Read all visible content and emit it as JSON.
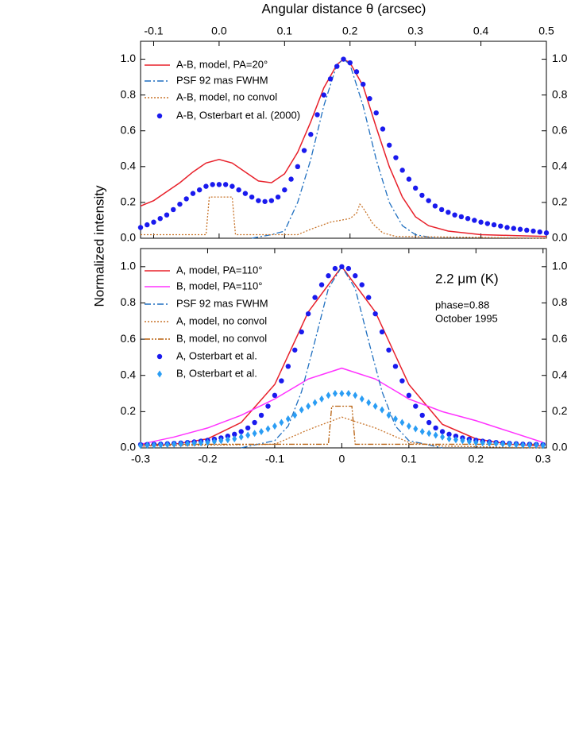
{
  "chart_data": [
    {
      "type": "line",
      "x_label": "Angular distance  θ (arcsec)",
      "y_label": "Normalized  intensity",
      "xlim": [
        -0.12,
        0.5
      ],
      "xticks": [
        -0.1,
        {
          "value": 0,
          "label": "0.0"
        },
        0.1,
        0.2,
        0.3,
        0.4,
        0.5
      ],
      "ylim": [
        0,
        1.1
      ],
      "yticks": [
        {
          "value": 0,
          "label": "0.0"
        },
        0.2,
        0.4,
        0.6,
        0.8,
        {
          "value": 1,
          "label": "1.0"
        }
      ],
      "series": [
        {
          "name": "A-B, model, PA=20°",
          "color": "#e8202a",
          "style": "solid",
          "x": [
            -0.12,
            -0.1,
            -0.08,
            -0.06,
            -0.04,
            -0.02,
            0,
            0.02,
            0.04,
            0.06,
            0.08,
            0.1,
            0.12,
            0.14,
            0.16,
            0.18,
            0.19,
            0.2,
            0.22,
            0.24,
            0.26,
            0.28,
            0.3,
            0.32,
            0.35,
            0.4,
            0.45,
            0.5
          ],
          "values": [
            0.18,
            0.21,
            0.26,
            0.31,
            0.37,
            0.42,
            0.44,
            0.42,
            0.37,
            0.32,
            0.31,
            0.36,
            0.48,
            0.65,
            0.84,
            0.97,
            1.0,
            0.98,
            0.85,
            0.62,
            0.4,
            0.23,
            0.12,
            0.07,
            0.04,
            0.02,
            0.015,
            0.01
          ]
        },
        {
          "name": "PSF 92 mas FWHM",
          "color": "#1f6fc0",
          "style": "dashdot",
          "x": [
            0.05,
            0.08,
            0.1,
            0.12,
            0.14,
            0.16,
            0.18,
            0.19,
            0.2,
            0.22,
            0.24,
            0.26,
            0.28,
            0.3,
            0.33
          ],
          "values": [
            0,
            0.02,
            0.04,
            0.2,
            0.44,
            0.74,
            0.97,
            1.0,
            0.97,
            0.74,
            0.44,
            0.2,
            0.07,
            0.02,
            0
          ]
        },
        {
          "name": "A-B, model, no convol",
          "color": "#c8742a",
          "style": "dotted",
          "x": [
            -0.12,
            -0.02,
            -0.015,
            0.02,
            0.025,
            0.12,
            0.14,
            0.17,
            0.2,
            0.21,
            0.215,
            0.22,
            0.235,
            0.25,
            0.27,
            0.5
          ],
          "values": [
            0.02,
            0.02,
            0.23,
            0.23,
            0.02,
            0.02,
            0.05,
            0.09,
            0.11,
            0.14,
            0.19,
            0.17,
            0.08,
            0.03,
            0.01,
            0
          ]
        },
        {
          "name": "A-B, Osterbart et al. (2000)",
          "color": "#1a1aee",
          "style": "markers",
          "marker": "circle",
          "x": [
            -0.12,
            -0.11,
            -0.1,
            -0.09,
            -0.08,
            -0.07,
            -0.06,
            -0.05,
            -0.04,
            -0.03,
            -0.02,
            -0.01,
            0,
            0.01,
            0.02,
            0.03,
            0.04,
            0.05,
            0.06,
            0.07,
            0.08,
            0.09,
            0.1,
            0.11,
            0.12,
            0.13,
            0.14,
            0.15,
            0.16,
            0.17,
            0.18,
            0.19,
            0.2,
            0.21,
            0.22,
            0.23,
            0.24,
            0.25,
            0.26,
            0.27,
            0.28,
            0.29,
            0.3,
            0.31,
            0.32,
            0.33,
            0.34,
            0.35,
            0.36,
            0.37,
            0.38,
            0.39,
            0.4,
            0.41,
            0.42,
            0.43,
            0.44,
            0.45,
            0.46,
            0.47,
            0.48,
            0.49,
            0.5
          ],
          "values": [
            0.06,
            0.075,
            0.09,
            0.11,
            0.13,
            0.16,
            0.19,
            0.22,
            0.25,
            0.27,
            0.29,
            0.3,
            0.3,
            0.3,
            0.29,
            0.27,
            0.25,
            0.23,
            0.21,
            0.205,
            0.21,
            0.23,
            0.27,
            0.33,
            0.4,
            0.49,
            0.58,
            0.69,
            0.8,
            0.89,
            0.96,
            1.0,
            0.98,
            0.93,
            0.86,
            0.78,
            0.7,
            0.61,
            0.52,
            0.45,
            0.38,
            0.33,
            0.28,
            0.24,
            0.21,
            0.18,
            0.16,
            0.145,
            0.13,
            0.12,
            0.11,
            0.1,
            0.09,
            0.082,
            0.075,
            0.068,
            0.06,
            0.055,
            0.05,
            0.045,
            0.04,
            0.035,
            0.03
          ]
        }
      ]
    },
    {
      "type": "line",
      "annotations": [
        "2.2 μm (K)",
        "phase=0.88",
        "October 1995"
      ],
      "xlim": [
        -0.3,
        0.305
      ],
      "xticks": [
        -0.3,
        -0.2,
        -0.1,
        0,
        0.1,
        0.2,
        0.3
      ],
      "ylim": [
        0,
        1.1
      ],
      "yticks": [
        {
          "value": 0,
          "label": "0.0"
        },
        0.2,
        0.4,
        0.6,
        0.8,
        {
          "value": 1,
          "label": "1.0"
        }
      ],
      "series": [
        {
          "name": "A, model, PA=110°",
          "color": "#e8202a",
          "style": "solid",
          "x": [
            -0.3,
            -0.25,
            -0.2,
            -0.15,
            -0.1,
            -0.05,
            0,
            0.05,
            0.1,
            0.15,
            0.2,
            0.25,
            0.3
          ],
          "values": [
            0.01,
            0.02,
            0.05,
            0.14,
            0.35,
            0.75,
            1.0,
            0.75,
            0.35,
            0.13,
            0.05,
            0.02,
            0.01
          ]
        },
        {
          "name": "B, model, PA=110°",
          "color": "#ff33ff",
          "style": "solid",
          "x": [
            -0.3,
            -0.25,
            -0.2,
            -0.15,
            -0.1,
            -0.05,
            0,
            0.05,
            0.1,
            0.15,
            0.2,
            0.25,
            0.3
          ],
          "values": [
            0.02,
            0.06,
            0.11,
            0.18,
            0.27,
            0.38,
            0.44,
            0.38,
            0.27,
            0.2,
            0.15,
            0.09,
            0.03
          ]
        },
        {
          "name": "PSF 92 mas FWHM",
          "color": "#1f6fc0",
          "style": "dashdot",
          "x": [
            -0.15,
            -0.1,
            -0.08,
            -0.06,
            -0.04,
            -0.02,
            0,
            0.02,
            0.04,
            0.06,
            0.08,
            0.1,
            0.15
          ],
          "values": [
            0,
            0.04,
            0.12,
            0.31,
            0.59,
            0.88,
            1.0,
            0.88,
            0.59,
            0.31,
            0.12,
            0.04,
            0
          ]
        },
        {
          "name": "A, model, no convol",
          "color": "#c8742a",
          "style": "dotted",
          "x": [
            -0.3,
            -0.1,
            -0.05,
            0,
            0.05,
            0.1,
            0.15,
            0.3
          ],
          "values": [
            0.01,
            0.02,
            0.1,
            0.17,
            0.11,
            0.03,
            0.01,
            0
          ]
        },
        {
          "name": "B, model, no convol",
          "color": "#b8600e",
          "style": "dashdotdot",
          "x": [
            -0.3,
            -0.02,
            -0.015,
            0.015,
            0.02,
            0.3
          ],
          "values": [
            0.02,
            0.02,
            0.23,
            0.23,
            0.02,
            0.02
          ]
        },
        {
          "name": "A, Osterbart et al.",
          "color": "#1a1aee",
          "style": "markers",
          "marker": "circle",
          "x": [
            -0.3,
            -0.29,
            -0.28,
            -0.27,
            -0.26,
            -0.25,
            -0.24,
            -0.23,
            -0.22,
            -0.21,
            -0.2,
            -0.19,
            -0.18,
            -0.17,
            -0.16,
            -0.15,
            -0.14,
            -0.13,
            -0.12,
            -0.11,
            -0.1,
            -0.09,
            -0.08,
            -0.07,
            -0.06,
            -0.05,
            -0.04,
            -0.03,
            -0.02,
            -0.01,
            0,
            0.01,
            0.02,
            0.03,
            0.04,
            0.05,
            0.06,
            0.07,
            0.08,
            0.09,
            0.1,
            0.11,
            0.12,
            0.13,
            0.14,
            0.15,
            0.16,
            0.17,
            0.18,
            0.19,
            0.2,
            0.21,
            0.22,
            0.23,
            0.24,
            0.25,
            0.26,
            0.27,
            0.28,
            0.29,
            0.3
          ],
          "values": [
            0.018,
            0.019,
            0.02,
            0.021,
            0.023,
            0.025,
            0.027,
            0.03,
            0.033,
            0.037,
            0.042,
            0.048,
            0.055,
            0.065,
            0.075,
            0.09,
            0.11,
            0.14,
            0.18,
            0.23,
            0.29,
            0.37,
            0.45,
            0.54,
            0.64,
            0.74,
            0.83,
            0.9,
            0.95,
            0.99,
            1.0,
            0.99,
            0.95,
            0.9,
            0.83,
            0.74,
            0.64,
            0.54,
            0.45,
            0.37,
            0.29,
            0.23,
            0.18,
            0.14,
            0.11,
            0.09,
            0.075,
            0.065,
            0.055,
            0.048,
            0.042,
            0.037,
            0.033,
            0.03,
            0.027,
            0.025,
            0.023,
            0.021,
            0.02,
            0.019,
            0.018
          ]
        },
        {
          "name": "B, Osterbart et al.",
          "color": "#2a9df4",
          "style": "markers",
          "marker": "diamond",
          "x": [
            -0.3,
            -0.29,
            -0.28,
            -0.27,
            -0.26,
            -0.25,
            -0.24,
            -0.23,
            -0.22,
            -0.21,
            -0.2,
            -0.19,
            -0.18,
            -0.17,
            -0.16,
            -0.15,
            -0.14,
            -0.13,
            -0.12,
            -0.11,
            -0.1,
            -0.09,
            -0.08,
            -0.07,
            -0.06,
            -0.05,
            -0.04,
            -0.03,
            -0.02,
            -0.01,
            0,
            0.01,
            0.02,
            0.03,
            0.04,
            0.05,
            0.06,
            0.07,
            0.08,
            0.09,
            0.1,
            0.11,
            0.12,
            0.13,
            0.14,
            0.15,
            0.16,
            0.17,
            0.18,
            0.19,
            0.2,
            0.21,
            0.22,
            0.23,
            0.24,
            0.25,
            0.26,
            0.27,
            0.28,
            0.29,
            0.3
          ],
          "values": [
            0.013,
            0.014,
            0.015,
            0.016,
            0.018,
            0.02,
            0.022,
            0.024,
            0.026,
            0.028,
            0.03,
            0.035,
            0.04,
            0.045,
            0.05,
            0.06,
            0.07,
            0.08,
            0.09,
            0.105,
            0.12,
            0.14,
            0.16,
            0.18,
            0.21,
            0.23,
            0.25,
            0.27,
            0.29,
            0.3,
            0.3,
            0.3,
            0.29,
            0.27,
            0.25,
            0.23,
            0.21,
            0.18,
            0.16,
            0.14,
            0.12,
            0.105,
            0.09,
            0.08,
            0.07,
            0.06,
            0.05,
            0.045,
            0.04,
            0.035,
            0.03,
            0.028,
            0.026,
            0.024,
            0.022,
            0.02,
            0.018,
            0.016,
            0.015,
            0.014,
            0.013
          ]
        }
      ]
    }
  ]
}
